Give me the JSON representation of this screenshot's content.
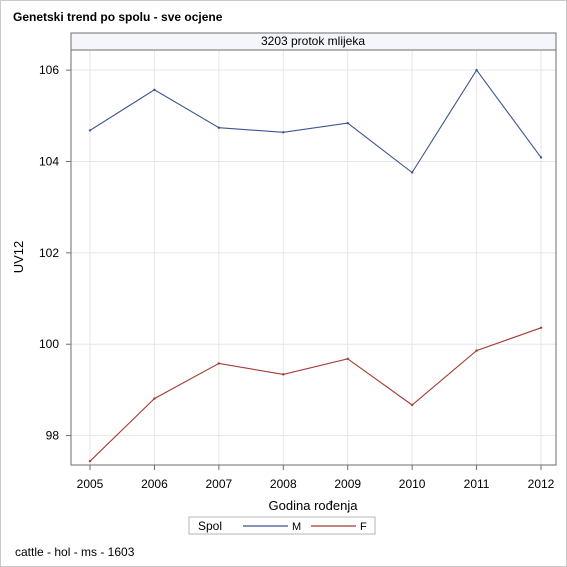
{
  "title": "Genetski trend po spolu - sve ocjene",
  "footnote": "cattle - hol - ms - 1603",
  "chart_data": {
    "type": "line",
    "title": "Genetski trend po spolu - sve ocjene",
    "panel_label": "3203 protok mlijeka",
    "xlabel": "Godina rođenja",
    "ylabel": "UV12",
    "x": [
      2005,
      2006,
      2007,
      2008,
      2009,
      2010,
      2011,
      2012
    ],
    "xlim": [
      2005,
      2012
    ],
    "ylim": [
      97.4,
      106.2
    ],
    "yticks": [
      98,
      100,
      102,
      104,
      106
    ],
    "grid": true,
    "legend_title": "Spol",
    "legend_position": "bottom",
    "series": [
      {
        "name": "M",
        "color": "#3c5590",
        "values": [
          104.68,
          105.57,
          104.74,
          104.64,
          104.84,
          103.76,
          106.0,
          104.09
        ]
      },
      {
        "name": "F",
        "color": "#a33b33",
        "values": [
          97.44,
          98.81,
          99.58,
          99.34,
          99.68,
          98.67,
          99.86,
          100.36
        ]
      }
    ]
  }
}
